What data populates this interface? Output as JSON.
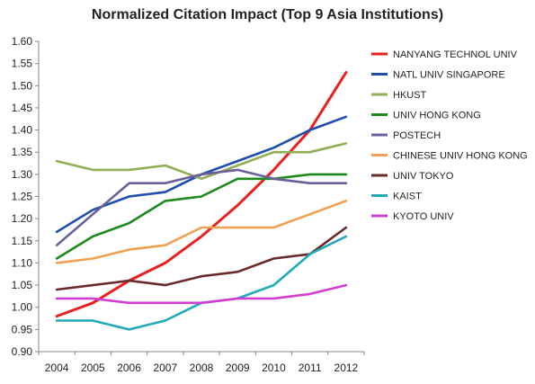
{
  "chart_data": {
    "type": "line",
    "title": "Normalized Citation Impact (Top 9 Asia Institutions)",
    "xlabel": "",
    "ylabel": "",
    "x": [
      "2004",
      "2005",
      "2006",
      "2007",
      "2008",
      "2009",
      "2010",
      "2011",
      "2012"
    ],
    "ylim": [
      0.9,
      1.6
    ],
    "yticks": [
      "0.90",
      "0.95",
      "1.00",
      "1.05",
      "1.10",
      "1.15",
      "1.20",
      "1.25",
      "1.30",
      "1.35",
      "1.40",
      "1.45",
      "1.50",
      "1.55",
      "1.60"
    ],
    "grid": false,
    "legend": "right",
    "series": [
      {
        "name": "NANYANG TECHNOL UNIV",
        "color": "#e8201e",
        "values": [
          0.98,
          1.01,
          1.06,
          1.1,
          1.16,
          1.23,
          1.31,
          1.4,
          1.53
        ]
      },
      {
        "name": "NATL UNIV SINGAPORE",
        "color": "#1f4fae",
        "values": [
          1.17,
          1.22,
          1.25,
          1.26,
          1.3,
          1.33,
          1.36,
          1.4,
          1.43
        ]
      },
      {
        "name": "HKUST",
        "color": "#8faf52",
        "values": [
          1.33,
          1.31,
          1.31,
          1.32,
          1.29,
          1.32,
          1.35,
          1.35,
          1.37
        ]
      },
      {
        "name": "UNIV HONG KONG",
        "color": "#1e8a1e",
        "values": [
          1.11,
          1.16,
          1.19,
          1.24,
          1.25,
          1.29,
          1.29,
          1.3,
          1.3
        ]
      },
      {
        "name": "POSTECH",
        "color": "#6b5e9c",
        "values": [
          1.14,
          1.21,
          1.28,
          1.28,
          1.3,
          1.31,
          1.29,
          1.28,
          1.28
        ]
      },
      {
        "name": "CHINESE UNIV HONG KONG",
        "color": "#f0a050",
        "values": [
          1.1,
          1.11,
          1.13,
          1.14,
          1.18,
          1.18,
          1.18,
          1.21,
          1.24
        ]
      },
      {
        "name": "UNIV TOKYO",
        "color": "#6b2a2a",
        "values": [
          1.04,
          1.05,
          1.06,
          1.05,
          1.07,
          1.08,
          1.11,
          1.12,
          1.18
        ]
      },
      {
        "name": "KAIST",
        "color": "#22aab8",
        "values": [
          0.97,
          0.97,
          0.95,
          0.97,
          1.01,
          1.02,
          1.05,
          1.12,
          1.16
        ]
      },
      {
        "name": "KYOTO UNIV",
        "color": "#d23ed2",
        "values": [
          1.02,
          1.02,
          1.01,
          1.01,
          1.01,
          1.02,
          1.02,
          1.03,
          1.05
        ]
      }
    ]
  }
}
